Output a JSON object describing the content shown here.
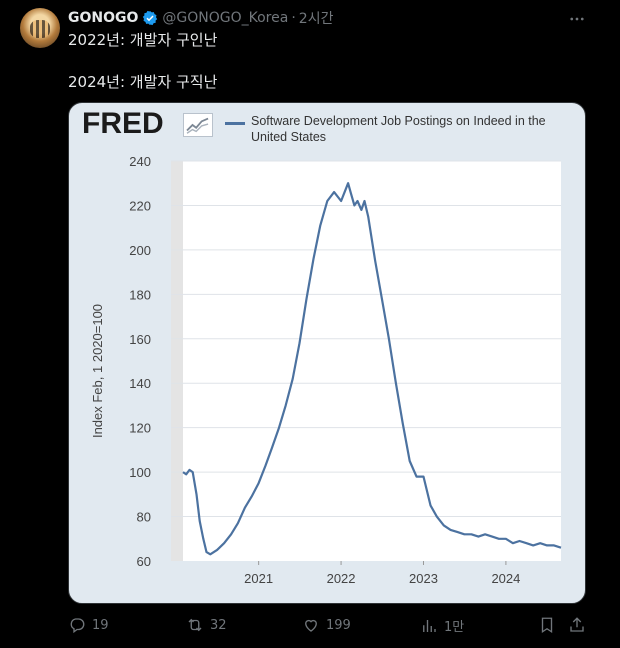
{
  "tweet": {
    "name": "GONOGO",
    "handle": "@GONOGO_Korea",
    "separator": "·",
    "time": "2시간",
    "line1": "2022년: 개발자 구인난",
    "line2": "2024년: 개발자 구직난"
  },
  "card": {
    "logo": "FRED",
    "legend": "Software Development Job Postings on Indeed in the United States"
  },
  "chart_data": {
    "type": "line",
    "title": "Software Development Job Postings on Indeed in the United States",
    "ylabel": "Index Feb, 1 2020=100",
    "xlabel": "",
    "ylim": [
      60,
      240
    ],
    "yticks": [
      60,
      80,
      100,
      120,
      140,
      160,
      180,
      200,
      220,
      240
    ],
    "xticks": [
      "2021",
      "2022",
      "2023",
      "2024"
    ],
    "grid": true,
    "color": "#4c72a0",
    "series": [
      {
        "name": "Software Development Job Postings on Indeed in the United States",
        "x": [
          "2020-02-01",
          "2020-02-15",
          "2020-03-01",
          "2020-03-15",
          "2020-04-01",
          "2020-04-15",
          "2020-05-01",
          "2020-05-15",
          "2020-06-01",
          "2020-07-01",
          "2020-08-01",
          "2020-09-01",
          "2020-10-01",
          "2020-11-01",
          "2020-12-01",
          "2021-01-01",
          "2021-02-01",
          "2021-03-01",
          "2021-04-01",
          "2021-05-01",
          "2021-06-01",
          "2021-07-01",
          "2021-08-01",
          "2021-09-01",
          "2021-10-01",
          "2021-11-01",
          "2021-12-01",
          "2022-01-01",
          "2022-02-01",
          "2022-02-15",
          "2022-03-01",
          "2022-03-15",
          "2022-04-01",
          "2022-04-15",
          "2022-05-01",
          "2022-06-01",
          "2022-07-01",
          "2022-08-01",
          "2022-09-01",
          "2022-10-01",
          "2022-11-01",
          "2022-12-01",
          "2023-01-01",
          "2023-02-01",
          "2023-03-01",
          "2023-04-01",
          "2023-05-01",
          "2023-06-01",
          "2023-07-01",
          "2023-08-01",
          "2023-09-01",
          "2023-10-01",
          "2023-11-01",
          "2023-12-01",
          "2024-01-01",
          "2024-02-01",
          "2024-03-01",
          "2024-04-01",
          "2024-05-01",
          "2024-06-01",
          "2024-07-01",
          "2024-08-01",
          "2024-09-01"
        ],
        "y": [
          100,
          99,
          101,
          100,
          90,
          78,
          70,
          64,
          63,
          65,
          68,
          72,
          77,
          84,
          89,
          95,
          103,
          111,
          120,
          130,
          142,
          158,
          178,
          196,
          211,
          222,
          226,
          222,
          230,
          225,
          220,
          222,
          218,
          222,
          215,
          195,
          178,
          160,
          140,
          122,
          105,
          98,
          98,
          85,
          80,
          76,
          74,
          73,
          72,
          72,
          71,
          72,
          71,
          70,
          70,
          68,
          69,
          68,
          67,
          68,
          67,
          67,
          66
        ]
      }
    ]
  },
  "actions": {
    "reply_count": "19",
    "retweet_count": "32",
    "like_count": "199",
    "views_count": "1만"
  }
}
